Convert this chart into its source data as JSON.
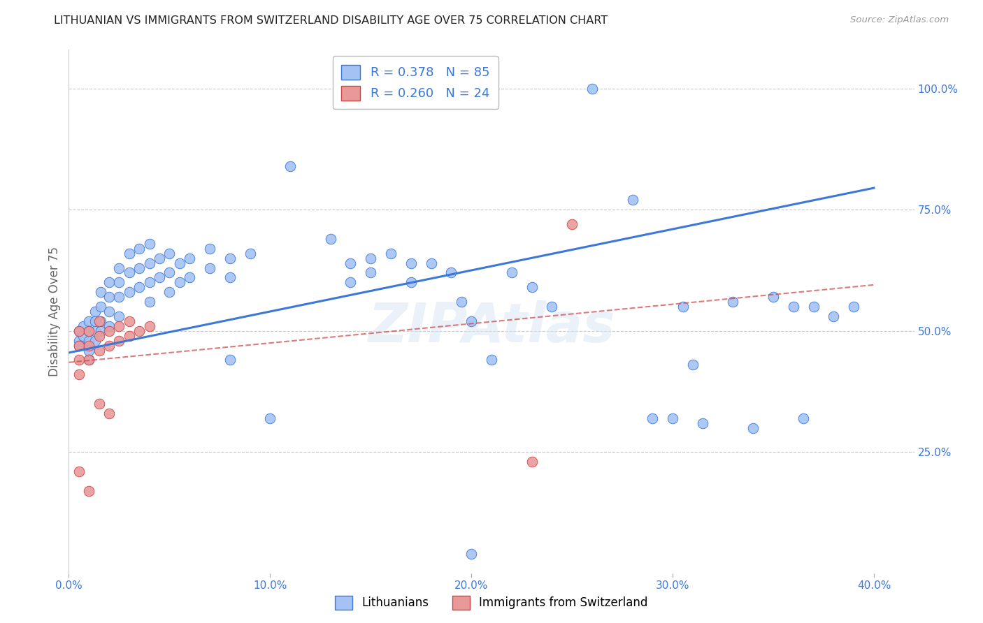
{
  "title": "LITHUANIAN VS IMMIGRANTS FROM SWITZERLAND DISABILITY AGE OVER 75 CORRELATION CHART",
  "source": "Source: ZipAtlas.com",
  "ylabel": "Disability Age Over 75",
  "watermark": "ZIPAtlas",
  "x_min": 0.0,
  "x_max": 0.42,
  "y_min": 0.0,
  "y_max": 1.08,
  "x_ticks": [
    0.0,
    0.1,
    0.2,
    0.3,
    0.4
  ],
  "x_tick_labels": [
    "0.0%",
    "10.0%",
    "20.0%",
    "30.0%",
    "40.0%"
  ],
  "y_tick_labels": [
    "25.0%",
    "50.0%",
    "75.0%",
    "100.0%"
  ],
  "y_ticks": [
    0.25,
    0.5,
    0.75,
    1.0
  ],
  "legend_r1": "R = 0.378",
  "legend_n1": "N = 85",
  "legend_r2": "R = 0.260",
  "legend_n2": "N = 24",
  "blue_color": "#a4c2f4",
  "pink_color": "#ea9999",
  "line_blue": "#3c78d8",
  "line_pink": "#cc4444",
  "blue_scatter": [
    [
      0.005,
      0.5
    ],
    [
      0.005,
      0.48
    ],
    [
      0.005,
      0.47
    ],
    [
      0.007,
      0.51
    ],
    [
      0.007,
      0.49
    ],
    [
      0.01,
      0.52
    ],
    [
      0.01,
      0.5
    ],
    [
      0.01,
      0.48
    ],
    [
      0.01,
      0.46
    ],
    [
      0.01,
      0.44
    ],
    [
      0.013,
      0.54
    ],
    [
      0.013,
      0.52
    ],
    [
      0.013,
      0.5
    ],
    [
      0.013,
      0.48
    ],
    [
      0.016,
      0.58
    ],
    [
      0.016,
      0.55
    ],
    [
      0.016,
      0.52
    ],
    [
      0.016,
      0.5
    ],
    [
      0.02,
      0.6
    ],
    [
      0.02,
      0.57
    ],
    [
      0.02,
      0.54
    ],
    [
      0.02,
      0.51
    ],
    [
      0.025,
      0.63
    ],
    [
      0.025,
      0.6
    ],
    [
      0.025,
      0.57
    ],
    [
      0.025,
      0.53
    ],
    [
      0.03,
      0.66
    ],
    [
      0.03,
      0.62
    ],
    [
      0.03,
      0.58
    ],
    [
      0.035,
      0.67
    ],
    [
      0.035,
      0.63
    ],
    [
      0.035,
      0.59
    ],
    [
      0.04,
      0.68
    ],
    [
      0.04,
      0.64
    ],
    [
      0.04,
      0.6
    ],
    [
      0.04,
      0.56
    ],
    [
      0.045,
      0.65
    ],
    [
      0.045,
      0.61
    ],
    [
      0.05,
      0.66
    ],
    [
      0.05,
      0.62
    ],
    [
      0.05,
      0.58
    ],
    [
      0.055,
      0.64
    ],
    [
      0.055,
      0.6
    ],
    [
      0.06,
      0.65
    ],
    [
      0.06,
      0.61
    ],
    [
      0.07,
      0.67
    ],
    [
      0.07,
      0.63
    ],
    [
      0.08,
      0.65
    ],
    [
      0.08,
      0.61
    ],
    [
      0.08,
      0.44
    ],
    [
      0.09,
      0.66
    ],
    [
      0.1,
      0.32
    ],
    [
      0.11,
      0.84
    ],
    [
      0.13,
      0.69
    ],
    [
      0.14,
      0.64
    ],
    [
      0.14,
      0.6
    ],
    [
      0.15,
      0.65
    ],
    [
      0.15,
      0.62
    ],
    [
      0.16,
      0.66
    ],
    [
      0.17,
      0.64
    ],
    [
      0.17,
      0.6
    ],
    [
      0.18,
      0.64
    ],
    [
      0.19,
      0.62
    ],
    [
      0.195,
      0.56
    ],
    [
      0.2,
      0.52
    ],
    [
      0.21,
      0.44
    ],
    [
      0.22,
      0.62
    ],
    [
      0.23,
      0.59
    ],
    [
      0.24,
      0.55
    ],
    [
      0.26,
      1.0
    ],
    [
      0.28,
      0.77
    ],
    [
      0.29,
      0.32
    ],
    [
      0.3,
      0.32
    ],
    [
      0.305,
      0.55
    ],
    [
      0.31,
      0.43
    ],
    [
      0.315,
      0.31
    ],
    [
      0.33,
      0.56
    ],
    [
      0.34,
      0.3
    ],
    [
      0.35,
      0.57
    ],
    [
      0.36,
      0.55
    ],
    [
      0.365,
      0.32
    ],
    [
      0.37,
      0.55
    ],
    [
      0.38,
      0.53
    ],
    [
      0.39,
      0.55
    ],
    [
      0.2,
      0.04
    ]
  ],
  "pink_scatter": [
    [
      0.005,
      0.5
    ],
    [
      0.005,
      0.47
    ],
    [
      0.005,
      0.44
    ],
    [
      0.005,
      0.41
    ],
    [
      0.01,
      0.5
    ],
    [
      0.01,
      0.47
    ],
    [
      0.01,
      0.44
    ],
    [
      0.015,
      0.52
    ],
    [
      0.015,
      0.49
    ],
    [
      0.015,
      0.46
    ],
    [
      0.02,
      0.5
    ],
    [
      0.02,
      0.47
    ],
    [
      0.025,
      0.51
    ],
    [
      0.025,
      0.48
    ],
    [
      0.03,
      0.52
    ],
    [
      0.03,
      0.49
    ],
    [
      0.035,
      0.5
    ],
    [
      0.04,
      0.51
    ],
    [
      0.005,
      0.21
    ],
    [
      0.01,
      0.17
    ],
    [
      0.015,
      0.35
    ],
    [
      0.02,
      0.33
    ],
    [
      0.25,
      0.72
    ],
    [
      0.23,
      0.23
    ]
  ],
  "blue_line_x": [
    0.0,
    0.4
  ],
  "blue_line_y": [
    0.455,
    0.795
  ],
  "pink_line_x": [
    0.0,
    0.4
  ],
  "pink_line_y": [
    0.435,
    0.595
  ],
  "bg_color": "#ffffff",
  "grid_color": "#c8c8c8"
}
